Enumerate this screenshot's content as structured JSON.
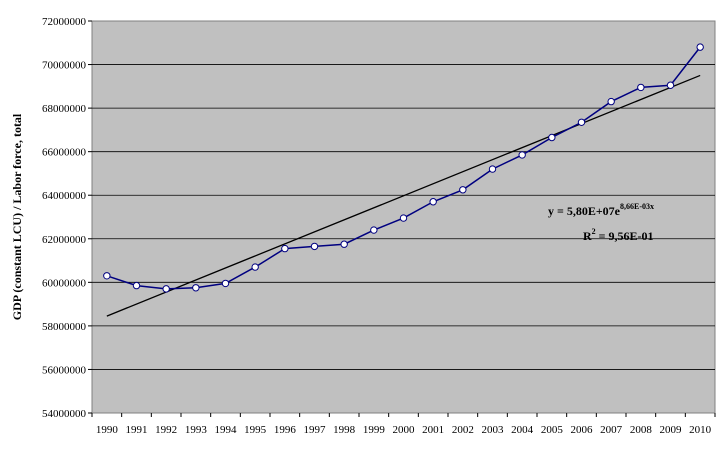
{
  "chart_data": {
    "type": "line",
    "title": "",
    "xlabel": "",
    "ylabel": "GDP (constant LCU) / Labor force, total",
    "x": [
      1990,
      1991,
      1992,
      1993,
      1994,
      1995,
      1996,
      1997,
      1998,
      1999,
      2000,
      2001,
      2002,
      2003,
      2004,
      2005,
      2006,
      2007,
      2008,
      2009,
      2010
    ],
    "x_tick_labels": [
      "1990",
      "1991",
      "1992",
      "1993",
      "1994",
      "1995",
      "1996",
      "1997",
      "1998",
      "1999",
      "2000",
      "2001",
      "2002",
      "2003",
      "2004",
      "2005",
      "2006",
      "2007",
      "2008",
      "2009",
      "2010"
    ],
    "ylim": [
      54000000,
      72000000
    ],
    "y_tick_labels": [
      "54000000",
      "56000000",
      "58000000",
      "60000000",
      "62000000",
      "64000000",
      "66000000",
      "68000000",
      "70000000",
      "72000000"
    ],
    "grid": "horizontal",
    "legend": "none",
    "series": [
      {
        "values": [
          60300000,
          59850000,
          59700000,
          59750000,
          59950000,
          60700000,
          61550000,
          61650000,
          61750000,
          62400000,
          62950000,
          63700000,
          64250000,
          65200000,
          65850000,
          66650000,
          67350000,
          68300000,
          68950000,
          69050000,
          70800000
        ],
        "color": "#000080",
        "marker": "circle-white"
      }
    ],
    "trendline": {
      "type": "exponential",
      "color": "#000000",
      "start": 58450000,
      "end": 69500000,
      "equation_main": "y = 5,80E+07e",
      "equation_exp": "8,66E-03x",
      "r2_main": "R",
      "r2_sup": "2",
      "r2_rest": " = 9,56E-01"
    },
    "plot_background": "#c0c0c0"
  }
}
